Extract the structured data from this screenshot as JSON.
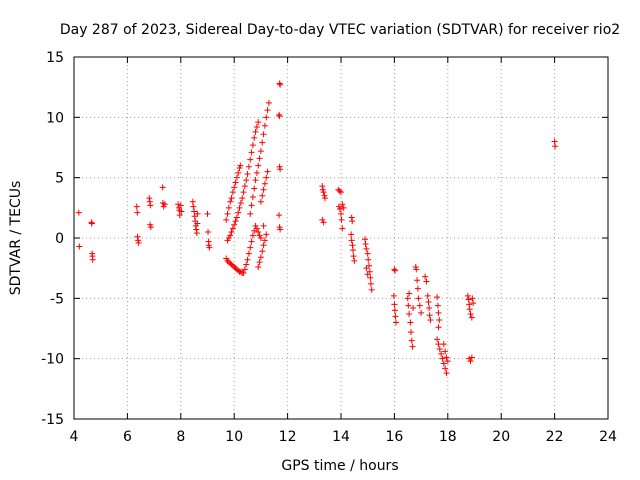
{
  "chart_data": {
    "type": "scatter",
    "title": "Day 287 of 2023, Sidereal Day-to-day VTEC variation (SDTVAR) for receiver rio2",
    "xlabel": "GPS time / hours",
    "ylabel": "SDTVAR / TECUs",
    "xlim": [
      4,
      24
    ],
    "ylim": [
      -15,
      15
    ],
    "xticks": [
      "4",
      "6",
      "8",
      "10",
      "12",
      "14",
      "16",
      "18",
      "20",
      "22",
      "24"
    ],
    "yticks": [
      "15",
      "10",
      "5",
      "0",
      "-5",
      "-10",
      "-15"
    ],
    "grid": true,
    "marker": "+",
    "color": "#ff0000",
    "series": [
      {
        "name": "SDTVAR",
        "points": [
          [
            4.18,
            2.1
          ],
          [
            4.2,
            -0.7
          ],
          [
            4.65,
            1.3
          ],
          [
            4.67,
            1.2
          ],
          [
            4.68,
            -1.3
          ],
          [
            4.69,
            -1.5
          ],
          [
            4.7,
            -1.8
          ],
          [
            6.35,
            2.6
          ],
          [
            6.37,
            2.1
          ],
          [
            6.38,
            0.1
          ],
          [
            6.4,
            -0.2
          ],
          [
            6.42,
            -0.4
          ],
          [
            6.82,
            3.3
          ],
          [
            6.84,
            3.0
          ],
          [
            6.86,
            2.7
          ],
          [
            6.85,
            1.1
          ],
          [
            6.88,
            0.9
          ],
          [
            7.32,
            4.2
          ],
          [
            7.33,
            2.9
          ],
          [
            7.36,
            2.6
          ],
          [
            7.4,
            2.8
          ],
          [
            7.9,
            2.8
          ],
          [
            7.93,
            2.5
          ],
          [
            7.95,
            2.3
          ],
          [
            7.96,
            1.9
          ],
          [
            8.0,
            2.7
          ],
          [
            8.02,
            2.2
          ],
          [
            8.45,
            3.0
          ],
          [
            8.47,
            2.6
          ],
          [
            8.5,
            2.2
          ],
          [
            8.52,
            1.8
          ],
          [
            8.54,
            1.4
          ],
          [
            8.56,
            1.0
          ],
          [
            8.58,
            0.7
          ],
          [
            8.6,
            0.4
          ],
          [
            8.63,
            2.0
          ],
          [
            8.62,
            1.2
          ],
          [
            9.0,
            2.0
          ],
          [
            9.02,
            0.5
          ],
          [
            9.04,
            -0.3
          ],
          [
            9.05,
            -0.6
          ],
          [
            9.07,
            -0.8
          ],
          [
            9.7,
            1.5
          ],
          [
            9.75,
            2.0
          ],
          [
            9.8,
            2.5
          ],
          [
            9.85,
            3.0
          ],
          [
            9.9,
            3.3
          ],
          [
            9.95,
            3.8
          ],
          [
            10.0,
            4.2
          ],
          [
            10.05,
            4.6
          ],
          [
            10.1,
            5.0
          ],
          [
            10.15,
            5.4
          ],
          [
            10.2,
            5.8
          ],
          [
            10.23,
            6.0
          ],
          [
            9.75,
            -0.2
          ],
          [
            9.8,
            0.0
          ],
          [
            9.85,
            0.2
          ],
          [
            9.9,
            0.5
          ],
          [
            9.95,
            0.8
          ],
          [
            10.0,
            1.1
          ],
          [
            10.05,
            1.4
          ],
          [
            10.1,
            1.7
          ],
          [
            10.15,
            2.1
          ],
          [
            10.2,
            2.5
          ],
          [
            10.25,
            2.9
          ],
          [
            10.3,
            3.3
          ],
          [
            10.35,
            3.8
          ],
          [
            10.4,
            4.3
          ],
          [
            10.45,
            4.8
          ],
          [
            10.5,
            5.3
          ],
          [
            10.55,
            5.9
          ],
          [
            10.6,
            6.5
          ],
          [
            10.65,
            7.1
          ],
          [
            10.7,
            7.7
          ],
          [
            10.75,
            8.3
          ],
          [
            10.8,
            8.8
          ],
          [
            10.85,
            9.2
          ],
          [
            10.9,
            9.6
          ],
          [
            9.7,
            -1.7
          ],
          [
            9.75,
            -1.9
          ],
          [
            9.8,
            -2.0
          ],
          [
            9.85,
            -2.1
          ],
          [
            9.9,
            -2.2
          ],
          [
            9.95,
            -2.3
          ],
          [
            10.0,
            -2.4
          ],
          [
            10.05,
            -2.5
          ],
          [
            10.1,
            -2.6
          ],
          [
            10.15,
            -2.7
          ],
          [
            10.2,
            -2.8
          ],
          [
            10.25,
            -2.8
          ],
          [
            10.3,
            -2.9
          ],
          [
            10.35,
            -2.9
          ],
          [
            10.4,
            -2.6
          ],
          [
            10.45,
            -2.2
          ],
          [
            10.5,
            -1.8
          ],
          [
            10.55,
            -1.3
          ],
          [
            10.6,
            -0.8
          ],
          [
            10.65,
            -0.3
          ],
          [
            10.7,
            0.2
          ],
          [
            10.75,
            0.6
          ],
          [
            10.8,
            1.0
          ],
          [
            10.85,
            0.8
          ],
          [
            10.9,
            0.5
          ],
          [
            10.95,
            0.2
          ],
          [
            11.0,
            0.0
          ],
          [
            10.9,
            -2.4
          ],
          [
            10.95,
            -2.0
          ],
          [
            11.0,
            -1.6
          ],
          [
            11.05,
            -1.1
          ],
          [
            11.1,
            -0.6
          ],
          [
            11.15,
            -0.2
          ],
          [
            11.2,
            0.3
          ],
          [
            11.1,
            1.0
          ],
          [
            10.6,
            2.0
          ],
          [
            10.65,
            2.7
          ],
          [
            10.7,
            3.4
          ],
          [
            10.75,
            4.1
          ],
          [
            10.8,
            4.8
          ],
          [
            10.85,
            5.4
          ],
          [
            10.9,
            6.0
          ],
          [
            10.95,
            6.6
          ],
          [
            11.0,
            7.2
          ],
          [
            11.05,
            7.9
          ],
          [
            11.1,
            8.6
          ],
          [
            11.15,
            9.3
          ],
          [
            11.2,
            10.0
          ],
          [
            11.25,
            10.6
          ],
          [
            11.3,
            11.2
          ],
          [
            11.0,
            3.0
          ],
          [
            11.05,
            3.5
          ],
          [
            11.1,
            4.0
          ],
          [
            11.15,
            4.5
          ],
          [
            11.2,
            5.0
          ],
          [
            11.25,
            5.5
          ],
          [
            11.7,
            12.8
          ],
          [
            11.72,
            12.7
          ],
          [
            11.68,
            10.2
          ],
          [
            11.7,
            10.1
          ],
          [
            11.7,
            5.9
          ],
          [
            11.72,
            5.7
          ],
          [
            11.68,
            1.9
          ],
          [
            11.7,
            0.9
          ],
          [
            11.72,
            0.7
          ],
          [
            13.3,
            4.3
          ],
          [
            13.32,
            4.0
          ],
          [
            13.35,
            3.8
          ],
          [
            13.38,
            3.5
          ],
          [
            13.4,
            3.3
          ],
          [
            13.3,
            1.5
          ],
          [
            13.35,
            1.3
          ],
          [
            13.9,
            4.0
          ],
          [
            13.95,
            3.9
          ],
          [
            14.0,
            3.8
          ],
          [
            13.92,
            2.6
          ],
          [
            13.96,
            2.4
          ],
          [
            14.0,
            2.0
          ],
          [
            14.05,
            2.8
          ],
          [
            14.1,
            2.5
          ],
          [
            14.02,
            1.5
          ],
          [
            14.05,
            0.8
          ],
          [
            14.4,
            1.7
          ],
          [
            14.42,
            1.4
          ],
          [
            14.38,
            0.3
          ],
          [
            14.4,
            -0.2
          ],
          [
            14.43,
            -0.6
          ],
          [
            14.45,
            -1.0
          ],
          [
            14.47,
            -1.5
          ],
          [
            14.5,
            -1.9
          ],
          [
            14.9,
            -0.1
          ],
          [
            14.92,
            -0.5
          ],
          [
            14.95,
            -0.9
          ],
          [
            15.0,
            -1.3
          ],
          [
            15.02,
            -1.8
          ],
          [
            15.05,
            -2.3
          ],
          [
            15.08,
            -2.8
          ],
          [
            15.1,
            -3.3
          ],
          [
            15.12,
            -3.8
          ],
          [
            15.15,
            -4.3
          ],
          [
            15.0,
            -3.0
          ],
          [
            14.95,
            -2.5
          ],
          [
            16.0,
            -2.6
          ],
          [
            16.02,
            -2.7
          ],
          [
            15.98,
            -4.8
          ],
          [
            16.0,
            -5.5
          ],
          [
            16.02,
            -6.0
          ],
          [
            16.04,
            -6.5
          ],
          [
            16.06,
            -7.0
          ],
          [
            16.5,
            -5.0
          ],
          [
            16.52,
            -5.6
          ],
          [
            16.55,
            -6.3
          ],
          [
            16.6,
            -7.0
          ],
          [
            16.62,
            -7.8
          ],
          [
            16.65,
            -8.5
          ],
          [
            16.68,
            -9.0
          ],
          [
            16.55,
            -4.6
          ],
          [
            16.7,
            -5.8
          ],
          [
            16.8,
            -2.4
          ],
          [
            16.82,
            -2.6
          ],
          [
            16.85,
            -3.5
          ],
          [
            16.88,
            -4.2
          ],
          [
            16.9,
            -5.0
          ],
          [
            16.95,
            -5.6
          ],
          [
            17.0,
            -6.2
          ],
          [
            17.15,
            -3.2
          ],
          [
            17.2,
            -3.6
          ],
          [
            17.25,
            -4.8
          ],
          [
            17.28,
            -5.3
          ],
          [
            17.3,
            -5.8
          ],
          [
            17.32,
            -6.4
          ],
          [
            17.35,
            -6.8
          ],
          [
            17.6,
            -4.9
          ],
          [
            17.63,
            -5.6
          ],
          [
            17.65,
            -6.2
          ],
          [
            17.68,
            -6.8
          ],
          [
            17.65,
            -7.4
          ],
          [
            17.6,
            -8.4
          ],
          [
            17.65,
            -8.8
          ],
          [
            17.7,
            -9.2
          ],
          [
            17.75,
            -9.6
          ],
          [
            17.8,
            -10.0
          ],
          [
            17.85,
            -10.4
          ],
          [
            17.9,
            -10.8
          ],
          [
            17.95,
            -11.2
          ],
          [
            17.85,
            -8.8
          ],
          [
            17.9,
            -9.4
          ],
          [
            17.95,
            -9.9
          ],
          [
            18.0,
            -10.2
          ],
          [
            18.75,
            -4.8
          ],
          [
            18.78,
            -5.1
          ],
          [
            18.8,
            -5.5
          ],
          [
            18.82,
            -5.9
          ],
          [
            18.85,
            -6.3
          ],
          [
            18.9,
            -6.6
          ],
          [
            18.92,
            -5.0
          ],
          [
            18.95,
            -5.4
          ],
          [
            18.8,
            -10.0
          ],
          [
            18.85,
            -10.2
          ],
          [
            18.9,
            -9.9
          ],
          [
            22.0,
            8.0
          ],
          [
            22.02,
            7.6
          ]
        ]
      }
    ]
  }
}
